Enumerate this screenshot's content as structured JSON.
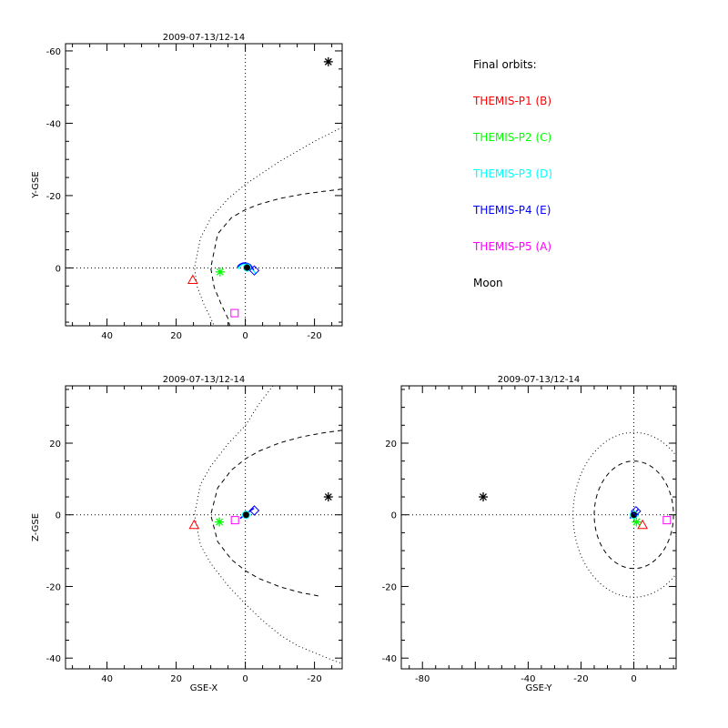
{
  "legend": {
    "title": "Final orbits:",
    "entries": [
      {
        "label": "THEMIS-P1 (B)",
        "color": "#ff0000"
      },
      {
        "label": "THEMIS-P2 (C)",
        "color": "#00ff00"
      },
      {
        "label": "THEMIS-P3 (D)",
        "color": "#00ffff"
      },
      {
        "label": "THEMIS-P4 (E)",
        "color": "#0000ff"
      },
      {
        "label": "THEMIS-P5 (A)",
        "color": "#ff00ff"
      },
      {
        "label": "Moon",
        "color": "#000000"
      }
    ]
  },
  "chart_data": [
    {
      "type": "scatter",
      "title": "2009-07-13/12-14",
      "xlabel": "",
      "ylabel": "Y-GSE",
      "xlim": [
        52,
        -28
      ],
      "ylim": [
        16,
        -62
      ],
      "xticks": [
        40,
        20,
        0,
        -20
      ],
      "yticks": [
        0,
        -20,
        -40,
        -60
      ],
      "grid": false,
      "axes_lines": true,
      "boundaries": [
        {
          "name": "magnetopause",
          "style": "dashed",
          "x": [
            -28,
            -22,
            -16,
            -10,
            -4,
            0,
            4,
            8,
            10,
            9,
            7,
            5,
            4.5
          ],
          "y": [
            -21.8,
            -21.1,
            -20.3,
            -19.2,
            -17.6,
            -16.1,
            -13.9,
            -9.4,
            0,
            5.4,
            10,
            14,
            16
          ]
        },
        {
          "name": "bow shock",
          "style": "dotted",
          "x": [
            -28,
            -20,
            -10,
            0,
            5,
            10,
            13,
            14.7,
            14,
            12,
            10,
            9
          ],
          "y": [
            -38.9,
            -35,
            -29.5,
            -23.1,
            -19.1,
            -13.8,
            -8.2,
            0,
            5,
            10,
            14,
            16
          ]
        }
      ],
      "orbits": [
        {
          "name": "THEMIS-P3 (D)",
          "x": [
            2,
            1.8,
            1.2,
            0.5,
            -0.2,
            -0.8,
            -1.5,
            -2.3,
            -3.1
          ],
          "y": [
            0.3,
            -0.3,
            -0.8,
            -1.1,
            -1.2,
            -0.9,
            -0.3,
            0.6,
            1.7
          ]
        },
        {
          "name": "THEMIS-P4 (E)",
          "x": [
            2.3,
            2,
            1.5,
            0.8,
            0,
            -0.8,
            -1.5,
            -2,
            -2.4
          ],
          "y": [
            -0.2,
            -0.6,
            -1,
            -1.3,
            -1.4,
            -1.2,
            -0.8,
            -0.1,
            0.6
          ]
        }
      ],
      "points": [
        {
          "name": "THEMIS-P1 (B)",
          "marker": "triangle",
          "x": 15.2,
          "y": 3.3
        },
        {
          "name": "THEMIS-P2 (C)",
          "marker": "asterisk",
          "x": 7.3,
          "y": 1.1
        },
        {
          "name": "THEMIS-P3 (D)",
          "marker": "circle",
          "x": -0.5,
          "y": -0.1
        },
        {
          "name": "THEMIS-P4 (E)",
          "marker": "diamond",
          "x": -2.6,
          "y": 0.7
        },
        {
          "name": "THEMIS-P5 (A)",
          "marker": "square",
          "x": 3.1,
          "y": 12.5
        },
        {
          "name": "Moon",
          "marker": "asterisk",
          "x": -24,
          "y": -57
        }
      ]
    },
    {
      "type": "scatter",
      "title": "2009-07-13/12-14",
      "xlabel": "GSE-X",
      "ylabel": "Z-GSE",
      "xlim": [
        52,
        -28
      ],
      "ylim": [
        -43,
        36
      ],
      "xticks": [
        40,
        20,
        0,
        -20
      ],
      "yticks": [
        -40,
        -20,
        0,
        20
      ],
      "grid": false,
      "axes_lines": true,
      "boundaries": [
        {
          "name": "magnetopause",
          "style": "dashed",
          "x": [
            -28,
            -22,
            -16,
            -10,
            -4,
            0,
            4,
            8,
            10,
            8,
            4,
            0,
            -4,
            -10,
            -16,
            -22
          ],
          "y": [
            23.6,
            22.8,
            21.7,
            20.1,
            17.8,
            15.6,
            12.5,
            7.5,
            0,
            -7.5,
            -12.5,
            -15.6,
            -17.8,
            -20.1,
            -21.7,
            -22.8
          ]
        },
        {
          "name": "bow shock",
          "style": "dotted",
          "x": [
            -8,
            -4,
            0,
            5,
            10,
            13,
            14.7,
            13,
            10,
            5,
            0,
            -5,
            -10,
            -15,
            -20,
            -25,
            -28
          ],
          "y": [
            36,
            31,
            24.9,
            19.8,
            13.6,
            8.4,
            0,
            -8.4,
            -13.6,
            -19.8,
            -24.9,
            -29.5,
            -33.5,
            -36.5,
            -38.5,
            -40.5,
            -41.5
          ]
        }
      ],
      "orbits": [
        {
          "name": "THEMIS-P4 (E)",
          "x": [
            -2.5,
            -1.5,
            -0.3,
            0.8,
            1.5
          ],
          "y": [
            1.8,
            1.2,
            0.3,
            -0.5,
            -1
          ]
        }
      ],
      "points": [
        {
          "name": "THEMIS-P1 (B)",
          "marker": "triangle",
          "x": 14.8,
          "y": -2.8
        },
        {
          "name": "THEMIS-P2 (C)",
          "marker": "asterisk",
          "x": 7.5,
          "y": -2
        },
        {
          "name": "THEMIS-P3 (D)",
          "marker": "circle",
          "x": -0.2,
          "y": 0
        },
        {
          "name": "THEMIS-P4 (E)",
          "marker": "diamond",
          "x": -2.6,
          "y": 1.2
        },
        {
          "name": "THEMIS-P5 (A)",
          "marker": "square",
          "x": 3,
          "y": -1.5
        },
        {
          "name": "Moon",
          "marker": "asterisk",
          "x": -24,
          "y": 5
        }
      ]
    },
    {
      "type": "scatter",
      "title": "2009-07-13/12-14",
      "xlabel": "GSE-Y",
      "ylabel": "",
      "xlim": [
        -88,
        16
      ],
      "ylim": [
        -43,
        36
      ],
      "xticks": [
        -80,
        -60,
        -40,
        -20,
        0
      ],
      "xtick_labels": [
        "-80",
        "",
        "-40",
        "-20",
        "0"
      ],
      "yticks": [
        -40,
        -20,
        0,
        20
      ],
      "grid": false,
      "axes_lines": true,
      "boundaries": [
        {
          "name": "magnetopause",
          "style": "dashed",
          "circle_radius": 15
        },
        {
          "name": "bow shock",
          "style": "dotted",
          "circle_radius": 23
        }
      ],
      "orbits": [
        {
          "name": "THEMIS-P4 (E)",
          "x": [
            -1.5,
            -0.5,
            0.8,
            1.6
          ],
          "y": [
            -1,
            -0.2,
            0.8,
            1.5
          ]
        }
      ],
      "points": [
        {
          "name": "THEMIS-P1 (B)",
          "marker": "triangle",
          "x": 3.3,
          "y": -2.8
        },
        {
          "name": "THEMIS-P2 (C)",
          "marker": "asterisk",
          "x": 1,
          "y": -2
        },
        {
          "name": "THEMIS-P3 (D)",
          "marker": "circle",
          "x": 0,
          "y": 0
        },
        {
          "name": "THEMIS-P4 (E)",
          "marker": "diamond",
          "x": 0.8,
          "y": 1
        },
        {
          "name": "THEMIS-P5 (A)",
          "marker": "square",
          "x": 12.5,
          "y": -1.5
        },
        {
          "name": "Moon",
          "marker": "asterisk",
          "x": -57,
          "y": 5
        }
      ]
    }
  ]
}
